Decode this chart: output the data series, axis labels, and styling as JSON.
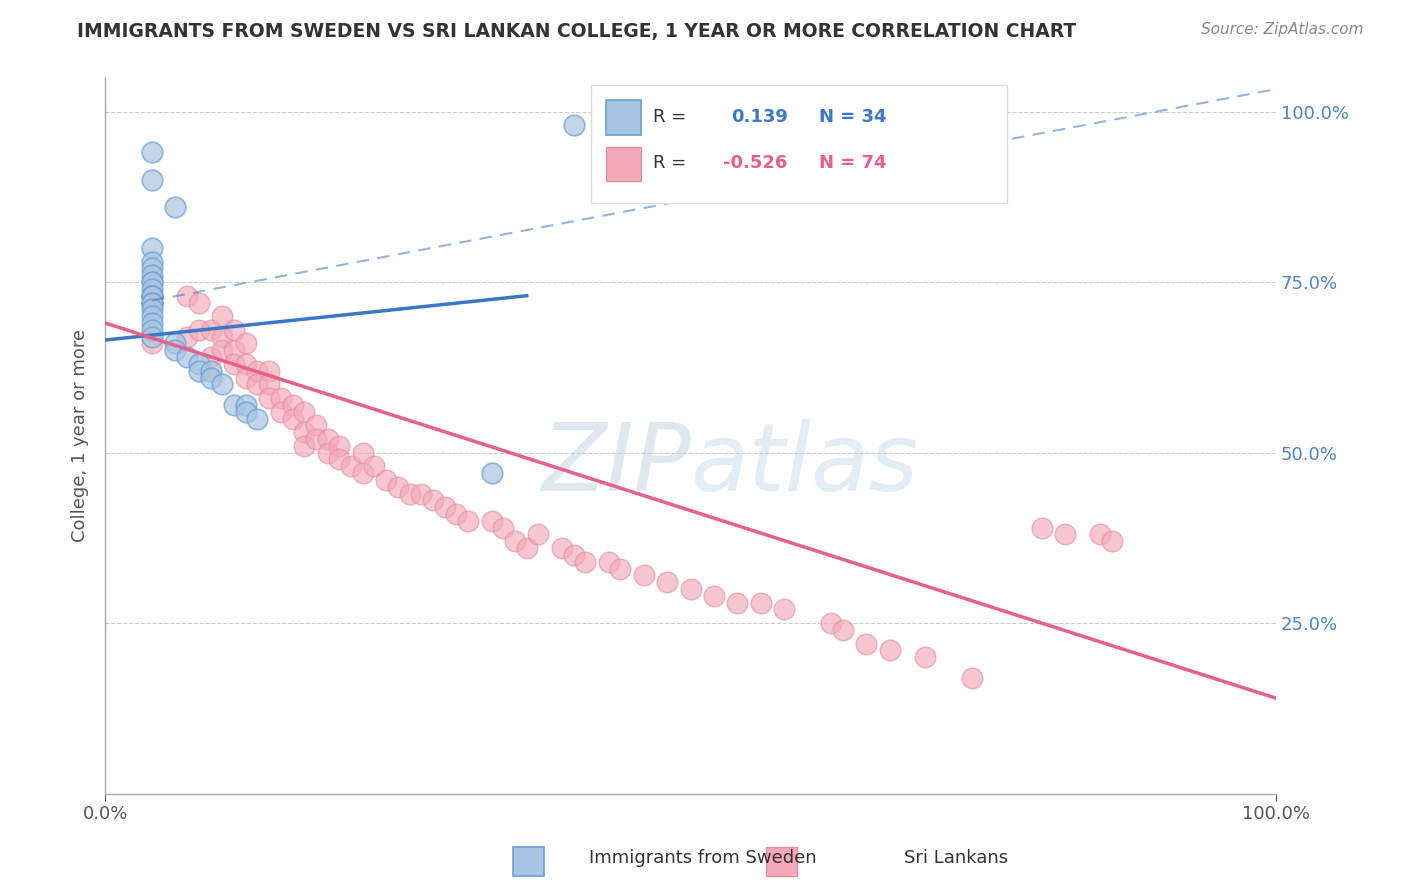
{
  "title": "IMMIGRANTS FROM SWEDEN VS SRI LANKAN COLLEGE, 1 YEAR OR MORE CORRELATION CHART",
  "source": "Source: ZipAtlas.com",
  "ylabel": "College, 1 year or more",
  "R_blue": 0.139,
  "N_blue": 34,
  "R_pink": -0.526,
  "N_pink": 74,
  "blue_line_color": "#3a78c8",
  "pink_line_color": "#e8608a",
  "blue_scatter_color": "#a8c4e0",
  "pink_scatter_color": "#f4a8b8",
  "blue_scatter_edge": "#6a9fd8",
  "pink_scatter_edge": "#e090a8",
  "watermark_color": "#c8d8ea",
  "background_color": "#ffffff",
  "grid_color": "#cccccc",
  "xlim": [
    0.0,
    1.0
  ],
  "ylim": [
    0.0,
    1.05
  ],
  "sweden_x": [
    0.04,
    0.04,
    0.06,
    0.04,
    0.04,
    0.04,
    0.04,
    0.04,
    0.04,
    0.04,
    0.04,
    0.04,
    0.04,
    0.04,
    0.04,
    0.04,
    0.04,
    0.04,
    0.04,
    0.04,
    0.06,
    0.06,
    0.07,
    0.08,
    0.08,
    0.09,
    0.09,
    0.1,
    0.11,
    0.12,
    0.12,
    0.13,
    0.33,
    0.4
  ],
  "sweden_y": [
    0.94,
    0.9,
    0.86,
    0.8,
    0.78,
    0.77,
    0.76,
    0.75,
    0.75,
    0.74,
    0.73,
    0.73,
    0.73,
    0.72,
    0.72,
    0.71,
    0.7,
    0.69,
    0.68,
    0.67,
    0.66,
    0.65,
    0.64,
    0.63,
    0.62,
    0.62,
    0.61,
    0.6,
    0.57,
    0.57,
    0.56,
    0.55,
    0.47,
    0.98
  ],
  "srilanka_x": [
    0.04,
    0.04,
    0.07,
    0.07,
    0.08,
    0.08,
    0.09,
    0.09,
    0.1,
    0.1,
    0.1,
    0.11,
    0.11,
    0.11,
    0.12,
    0.12,
    0.12,
    0.13,
    0.13,
    0.14,
    0.14,
    0.14,
    0.15,
    0.15,
    0.16,
    0.16,
    0.17,
    0.17,
    0.17,
    0.18,
    0.18,
    0.19,
    0.19,
    0.2,
    0.2,
    0.21,
    0.22,
    0.22,
    0.23,
    0.24,
    0.25,
    0.26,
    0.27,
    0.28,
    0.29,
    0.3,
    0.31,
    0.33,
    0.34,
    0.35,
    0.36,
    0.37,
    0.39,
    0.4,
    0.41,
    0.43,
    0.44,
    0.46,
    0.48,
    0.5,
    0.52,
    0.54,
    0.56,
    0.58,
    0.62,
    0.63,
    0.65,
    0.67,
    0.7,
    0.74,
    0.8,
    0.82,
    0.85,
    0.86
  ],
  "srilanka_y": [
    0.72,
    0.66,
    0.73,
    0.67,
    0.72,
    0.68,
    0.68,
    0.64,
    0.7,
    0.67,
    0.65,
    0.68,
    0.65,
    0.63,
    0.66,
    0.63,
    0.61,
    0.62,
    0.6,
    0.62,
    0.6,
    0.58,
    0.58,
    0.56,
    0.57,
    0.55,
    0.56,
    0.53,
    0.51,
    0.54,
    0.52,
    0.52,
    0.5,
    0.51,
    0.49,
    0.48,
    0.5,
    0.47,
    0.48,
    0.46,
    0.45,
    0.44,
    0.44,
    0.43,
    0.42,
    0.41,
    0.4,
    0.4,
    0.39,
    0.37,
    0.36,
    0.38,
    0.36,
    0.35,
    0.34,
    0.34,
    0.33,
    0.32,
    0.31,
    0.3,
    0.29,
    0.28,
    0.28,
    0.27,
    0.25,
    0.24,
    0.22,
    0.21,
    0.2,
    0.17,
    0.39,
    0.38,
    0.38,
    0.37
  ],
  "blue_line_x0": 0.0,
  "blue_line_y0": 0.665,
  "blue_line_x1": 0.36,
  "blue_line_y1": 0.73,
  "pink_line_x0": 0.0,
  "pink_line_y0": 0.69,
  "pink_line_x1": 1.0,
  "pink_line_y1": 0.14,
  "dash_line_x0": 0.04,
  "dash_line_y0": 0.71,
  "dash_line_x1": 1.0,
  "dash_line_y1": 1.02
}
